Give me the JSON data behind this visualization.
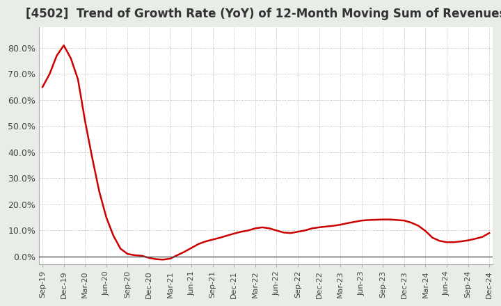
{
  "title": "[4502]  Trend of Growth Rate (YoY) of 12-Month Moving Sum of Revenues",
  "title_fontsize": 12,
  "line_color": "#cc0000",
  "bg_color": "#ffffff",
  "fig_bg_color": "#e8ede8",
  "ylim": [
    -0.03,
    0.88
  ],
  "yticks": [
    0.0,
    0.1,
    0.2,
    0.3,
    0.4,
    0.5,
    0.6,
    0.7,
    0.8
  ],
  "ytick_labels": [
    "0.0%",
    "10.0%",
    "20.0%",
    "30.0%",
    "40.0%",
    "50.0%",
    "60.0%",
    "70.0%",
    "80.0%"
  ],
  "values": [
    0.65,
    0.7,
    0.77,
    0.81,
    0.76,
    0.68,
    0.52,
    0.38,
    0.25,
    0.15,
    0.08,
    0.03,
    0.01,
    0.005,
    0.003,
    -0.005,
    -0.01,
    -0.012,
    -0.008,
    0.005,
    0.018,
    0.033,
    0.048,
    0.058,
    0.065,
    0.072,
    0.08,
    0.088,
    0.095,
    0.1,
    0.108,
    0.112,
    0.108,
    0.1,
    0.092,
    0.09,
    0.095,
    0.1,
    0.108,
    0.112,
    0.115,
    0.118,
    0.122,
    0.128,
    0.133,
    0.138,
    0.14,
    0.141,
    0.142,
    0.142,
    0.14,
    0.138,
    0.13,
    0.118,
    0.098,
    0.072,
    0.06,
    0.055,
    0.055,
    0.058,
    0.062,
    0.068,
    0.075,
    0.09
  ],
  "xtick_positions": [
    0,
    3,
    6,
    9,
    12,
    15,
    18,
    21,
    24,
    27,
    30,
    33,
    36,
    39,
    42,
    45,
    48,
    51,
    54,
    57,
    60,
    63
  ],
  "xtick_labels": [
    "Sep-19",
    "Dec-19",
    "Mar-20",
    "Jun-20",
    "Sep-20",
    "Dec-20",
    "Mar-21",
    "Jun-21",
    "Sep-21",
    "Dec-21",
    "Mar-22",
    "Jun-22",
    "Sep-22",
    "Dec-22",
    "Mar-23",
    "Jun-23",
    "Sep-23",
    "Dec-23",
    "Mar-24",
    "Jun-24",
    "Sep-24",
    "Dec-24"
  ]
}
